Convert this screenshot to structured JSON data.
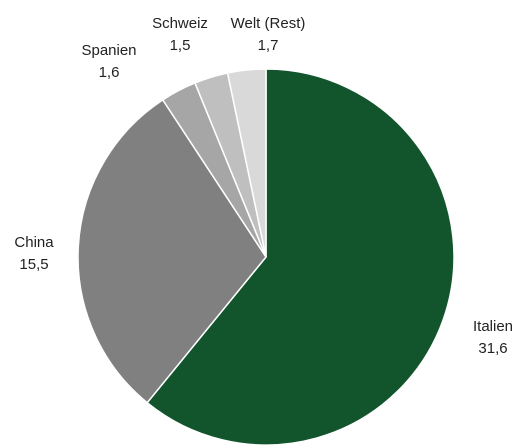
{
  "chart_data": {
    "type": "pie",
    "categories": [
      "Italien",
      "China",
      "Spanien",
      "Schweiz",
      "Welt (Rest)"
    ],
    "values": [
      31.6,
      15.5,
      1.6,
      1.5,
      1.7
    ],
    "value_labels": [
      "31,6",
      "15,5",
      "1,6",
      "1,5",
      "1,7"
    ],
    "colors": [
      "#12552d",
      "#808080",
      "#a6a6a6",
      "#bfbfbf",
      "#d9d9d9"
    ]
  }
}
